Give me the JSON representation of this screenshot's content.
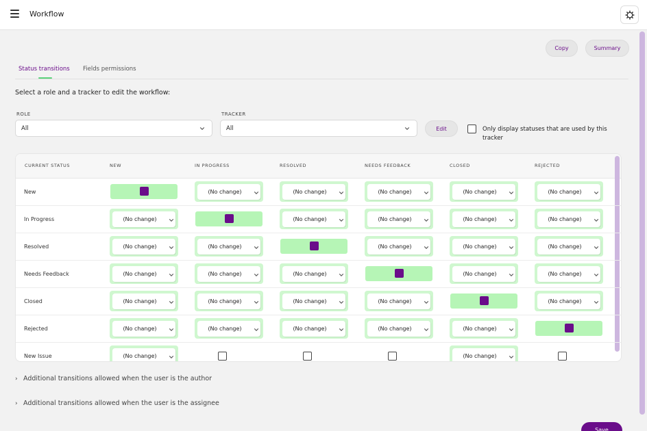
{
  "header": {
    "title": "Workflow",
    "menu_icon": "hamburger-menu-icon",
    "settings_icon": "gear-icon"
  },
  "actions": {
    "copy_label": "Copy",
    "summary_label": "Summary"
  },
  "tabs": [
    {
      "label": "Status transitions",
      "active": true
    },
    {
      "label": "Fields permissions",
      "active": false
    }
  ],
  "instruction": "Select a role and a tracker to edit the workflow:",
  "filters": {
    "role_label": "ROLE",
    "role_value": "All",
    "tracker_label": "TRACKER",
    "tracker_value": "All",
    "edit_label": "Edit",
    "only_used_label": "Only display statuses that are used by this tracker",
    "only_used_checked": false
  },
  "table": {
    "first_column_header": "CURRENT STATUS",
    "columns": [
      "NEW",
      "IN PROGRESS",
      "RESOLVED",
      "NEEDS FEEDBACK",
      "CLOSED",
      "REJECTED"
    ],
    "select_value": "(No change)",
    "rows": [
      {
        "label": "New",
        "cells": [
          "checked",
          "select",
          "select",
          "select",
          "select",
          "select"
        ]
      },
      {
        "label": "In Progress",
        "cells": [
          "select",
          "checked",
          "select",
          "select",
          "select",
          "select"
        ]
      },
      {
        "label": "Resolved",
        "cells": [
          "select",
          "select",
          "checked",
          "select",
          "select",
          "select"
        ]
      },
      {
        "label": "Needs Feedback",
        "cells": [
          "select",
          "select",
          "select",
          "checked",
          "select",
          "select"
        ]
      },
      {
        "label": "Closed",
        "cells": [
          "select",
          "select",
          "select",
          "select",
          "checked",
          "select"
        ]
      },
      {
        "label": "Rejected",
        "cells": [
          "select",
          "select",
          "select",
          "select",
          "select",
          "checked"
        ]
      },
      {
        "label": "New Issue",
        "cells": [
          "select",
          "checkbox",
          "checkbox",
          "checkbox",
          "select",
          "checkbox"
        ]
      }
    ]
  },
  "expanders": [
    "Additional transitions allowed when the user is the author",
    "Additional transitions allowed when the user is the assignee"
  ],
  "save_label": "Save",
  "colors": {
    "accent": "#6a0d8a",
    "allowed_cell": "#b6f5b6",
    "select_cell": "#cff7cf",
    "tab_underline": "#5ad17a"
  }
}
